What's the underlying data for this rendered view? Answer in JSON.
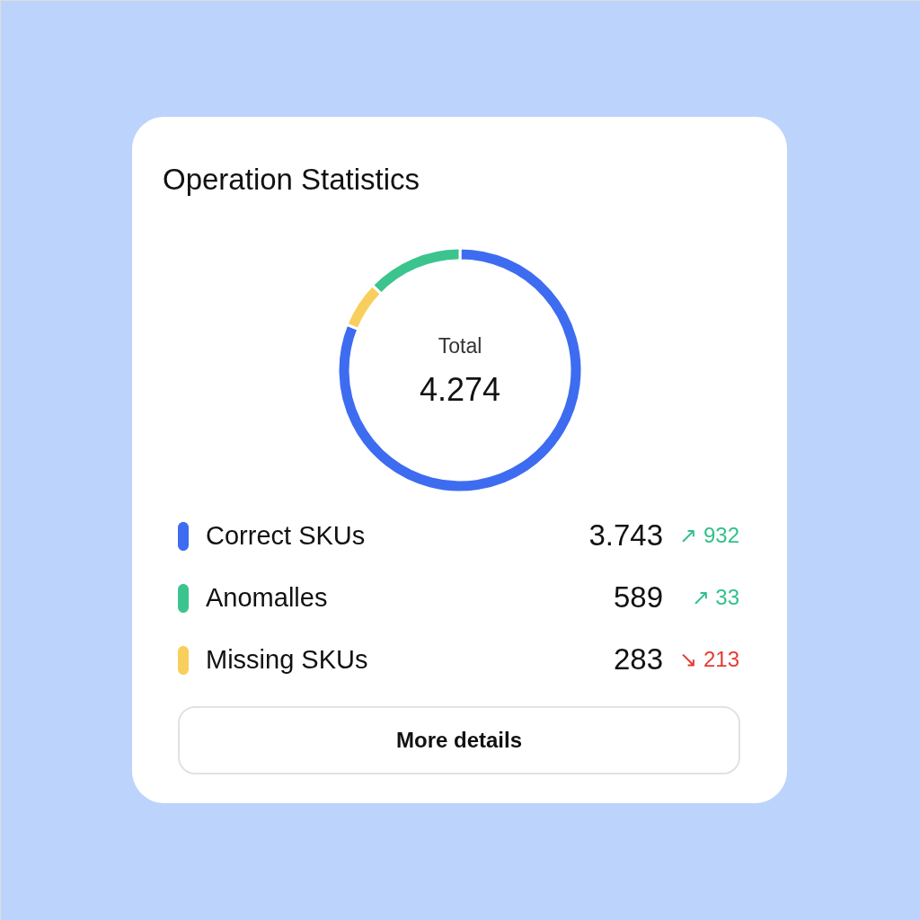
{
  "chart_data": {
    "type": "donut",
    "title": "Operation Statistics",
    "categories": [
      "Correct SKUs",
      "Anomalles",
      "Missing SKUs"
    ],
    "values": [
      3743,
      589,
      283
    ],
    "value_labels": [
      "3.743",
      "589",
      "283"
    ],
    "colors": [
      "#3d6cf0",
      "#3cc48f",
      "#f8cf5c"
    ],
    "legend": "bottom",
    "annotations": [
      "Total",
      "4.274",
      "↗ 932",
      "↗ 33",
      "↘ 213",
      "More details"
    ]
  }
}
